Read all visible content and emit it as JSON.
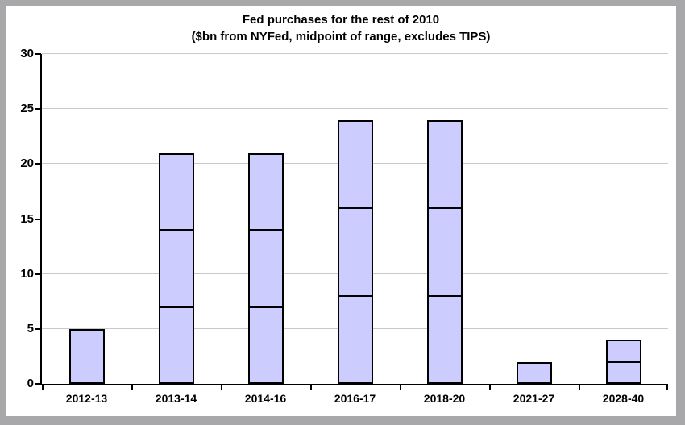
{
  "chart_data": {
    "type": "bar",
    "stacked": true,
    "title": "Fed purchases for the rest of 2010",
    "subtitle": "($bn from NYFed, midpoint of range, excludes TIPS)",
    "categories": [
      "2012-13",
      "2013-14",
      "2014-16",
      "2016-17",
      "2018-20",
      "2021-27",
      "2028-40"
    ],
    "bars": [
      {
        "category": "2012-13",
        "segments": [
          5
        ],
        "total": 5
      },
      {
        "category": "2013-14",
        "segments": [
          7,
          7,
          7
        ],
        "total": 21
      },
      {
        "category": "2014-16",
        "segments": [
          7,
          7,
          7
        ],
        "total": 21
      },
      {
        "category": "2016-17",
        "segments": [
          8,
          8,
          8
        ],
        "total": 24
      },
      {
        "category": "2018-20",
        "segments": [
          8,
          8,
          8
        ],
        "total": 24
      },
      {
        "category": "2021-27",
        "segments": [
          2
        ],
        "total": 2
      },
      {
        "category": "2028-40",
        "segments": [
          2,
          2
        ],
        "total": 4
      }
    ],
    "ylim": [
      0,
      30
    ],
    "yticks": [
      0,
      5,
      10,
      15,
      20,
      25,
      30
    ],
    "xlabel": "",
    "ylabel": "",
    "grid": true,
    "legend": false,
    "colors": {
      "bar_fill": "#ccccff",
      "bar_border": "#000000",
      "gridline": "#c9c9c9",
      "axis": "#000000",
      "text": "#000000",
      "frame_border": "#a8a8ab",
      "background": "#ffffff"
    }
  }
}
